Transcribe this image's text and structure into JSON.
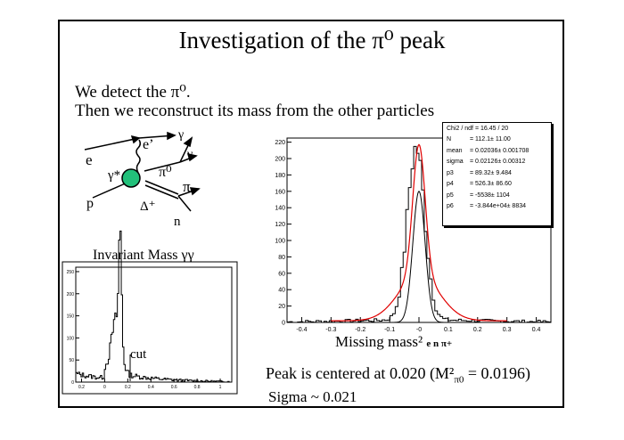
{
  "title": "Investigation of the π⁰ peak",
  "line1": "We detect the π⁰.",
  "line2": "Then we reconstruct its mass from the other particles",
  "diagram": {
    "e_in": "e",
    "e_out": "e’",
    "gamma_star": "γ*",
    "gamma1": "γ",
    "gamma2": "γ",
    "pi0": "π⁰",
    "pi": "π",
    "p": "p",
    "delta": "Δ⁺",
    "n": "n"
  },
  "small_plot": {
    "title": "Invariant Mass γγ",
    "cut_label": "cut",
    "x_ticks": [
      "0.2",
      "0",
      "0.2",
      "0.4",
      "0.6",
      "0.8",
      "1"
    ],
    "y_ticks": [
      "0",
      "50",
      "100",
      "150",
      "200",
      "250"
    ]
  },
  "big_plot": {
    "xlabel_main": "Missing mass²",
    "xlabel_sub": "e n π+",
    "x_ticks": [
      "-0.4",
      "-0.3",
      "-0.2",
      "-0.1",
      "-0",
      "0.1",
      "0.2",
      "0.3",
      "0.4"
    ],
    "y_ticks": [
      "0",
      "20",
      "40",
      "60",
      "80",
      "100",
      "120",
      "140",
      "160",
      "180",
      "200",
      "220"
    ],
    "ylim": [
      0,
      225
    ],
    "xlim": [
      -0.45,
      0.45
    ]
  },
  "stats": [
    {
      "k": "Chi2 / ndf",
      "v": "= 16.45 / 20"
    },
    {
      "k": "N",
      "v": "= 112.1± 11.00"
    },
    {
      "k": "mean",
      "v": "= 0.02036± 0.001708"
    },
    {
      "k": "sigma",
      "v": "= 0.02126± 0.00312"
    },
    {
      "k": "p3",
      "v": "= 89.32± 9.484"
    },
    {
      "k": "p4",
      "v": "= 526.3± 86.60"
    },
    {
      "k": "p5",
      "v": "= -5538± 1104"
    },
    {
      "k": "p6",
      "v": "= -3.844e+04± 8834"
    }
  ],
  "peak_text": "Peak is centered at 0.020 (M²",
  "peak_sub": "π0",
  "peak_end": " = 0.0196)",
  "sigma_text": "Sigma ~ 0.021",
  "colors": {
    "fit": "#e00000",
    "disk": "#22c07a"
  }
}
